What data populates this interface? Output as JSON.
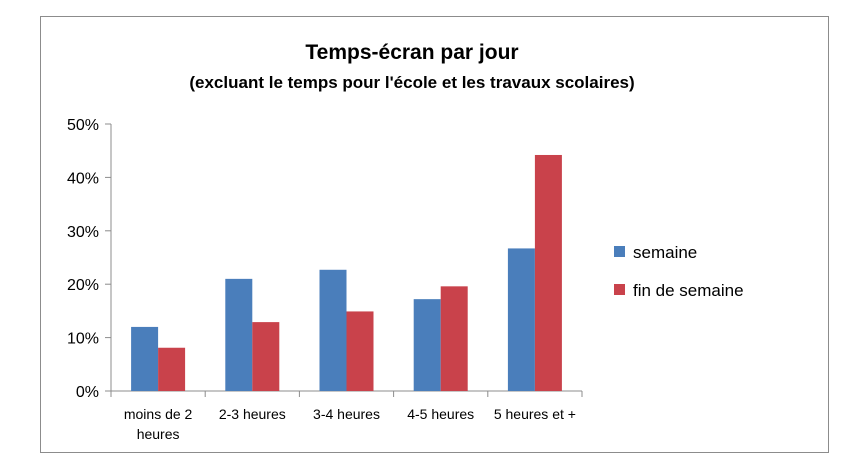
{
  "chart_data": {
    "type": "bar",
    "title": "Temps-écran par jour",
    "subtitle": "(excluant le temps pour l'école et les travaux scolaires)",
    "categories": [
      [
        "moins de 2",
        "heures"
      ],
      [
        "2-3 heures"
      ],
      [
        "3-4 heures"
      ],
      [
        "4-5 heures"
      ],
      [
        "5 heures et +"
      ]
    ],
    "series": [
      {
        "name": "semaine",
        "color": "#4a7ebb",
        "values": [
          12,
          21,
          22.7,
          17.2,
          26.7
        ]
      },
      {
        "name": "fin de semaine",
        "color": "#c9424b",
        "values": [
          8.1,
          12.9,
          14.9,
          19.6,
          44.2
        ]
      }
    ],
    "ylim": [
      0,
      50
    ],
    "yticks": [
      0,
      10,
      20,
      30,
      40,
      50
    ],
    "ytick_format": "percent",
    "xlabel": "",
    "ylabel": "",
    "grid": false,
    "legend": "right"
  }
}
